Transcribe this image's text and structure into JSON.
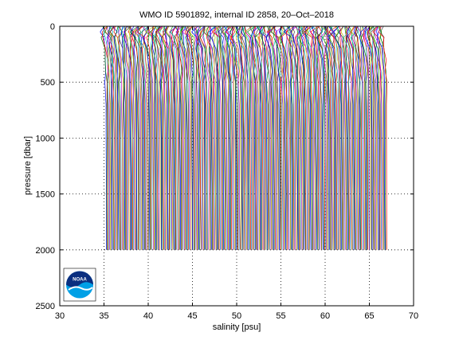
{
  "chart_data": {
    "type": "line",
    "title": "WMO ID 5901892, internal ID 2858, 20–Oct–2018",
    "xlabel": "salinity [psu]",
    "ylabel": "pressure [dbar]",
    "xlim": [
      30,
      70
    ],
    "ylim": [
      2500,
      0
    ],
    "y_reversed": true,
    "xticks": [
      30,
      35,
      40,
      45,
      50,
      55,
      60,
      65,
      70
    ],
    "yticks": [
      0,
      500,
      1000,
      1500,
      2000,
      2500
    ],
    "xtick_labels": [
      "30",
      "35",
      "40",
      "45",
      "50",
      "55",
      "60",
      "65",
      "70"
    ],
    "ytick_labels": [
      "0",
      "500",
      "1000",
      "1500",
      "2000",
      "2500"
    ],
    "grid": true,
    "grid_style": "dotted",
    "profile_layout": "waterfall, each profile offset by 0.1 psu",
    "profiles": {
      "count": 318,
      "first_profile_surface_salinity": 34.9,
      "offset_between_profiles": 0.1,
      "pressure": [
        0,
        50,
        100,
        200,
        300,
        400,
        500,
        700,
        1000,
        1500,
        2000
      ],
      "base_salinity_offset": [
        0.0,
        -0.15,
        -0.05,
        0.1,
        0.2,
        0.25,
        0.28,
        0.3,
        0.32,
        0.34,
        0.35
      ]
    },
    "series_colors": [
      "#0000ff",
      "#008000",
      "#ff0000",
      "#00bfbf",
      "#bf00bf",
      "#bfbf00",
      "#404040"
    ]
  },
  "logo": {
    "name": "noaa-logo",
    "text": "NOAA"
  }
}
